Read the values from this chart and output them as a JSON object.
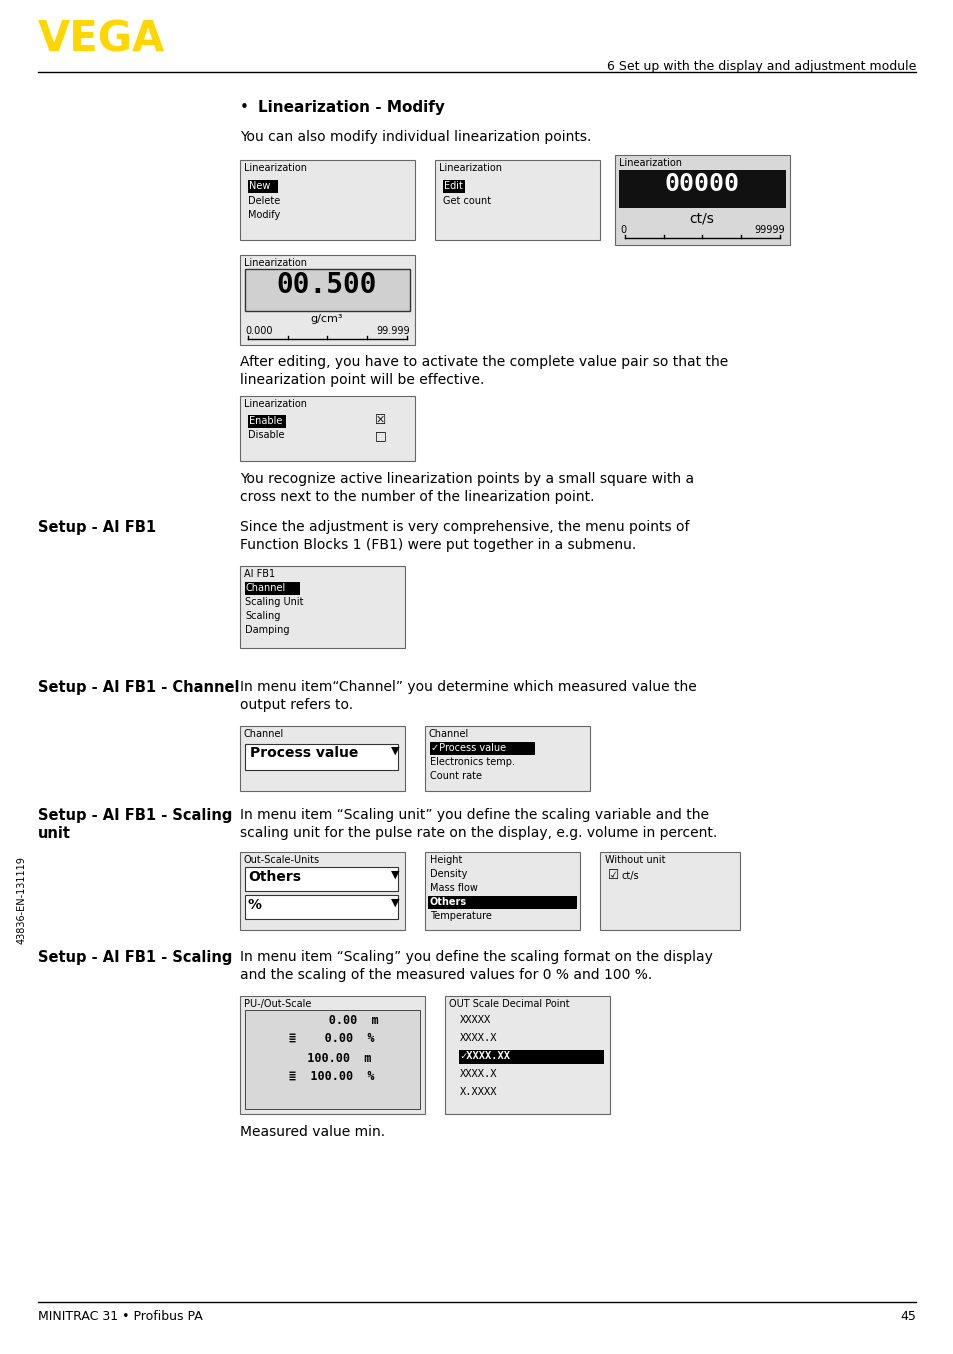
{
  "page_bg": "#ffffff",
  "vega_color": "#FFD700",
  "header_right_text": "6 Set up with the display and adjustment module",
  "footer_left_text": "MINITRAC 31 • Profibus PA",
  "footer_right_text": "45",
  "side_text": "43836-EN-131119",
  "bullet_text": "Linearization - Modify",
  "para1": "You can also modify individual linearization points.",
  "box1_title": "Linearization",
  "box2_title": "Linearization",
  "box3_title": "Linearization",
  "box3_value": "00000",
  "box3_unit": "ct/s",
  "box3_min": "0",
  "box3_max": "99999",
  "box4_title": "Linearization",
  "box4_value": "00.500",
  "box4_unit": "g/cm³",
  "box4_min": "0.000",
  "box4_max": "99.999",
  "para2a": "After editing, you have to activate the complete value pair so that the",
  "para2b": "linearization point will be effective.",
  "box5_title": "Linearization",
  "para3a": "You recognize active linearization points by a small square with a",
  "para3b": "cross next to the number of the linearization point.",
  "section1_label": "Setup - AI FB1",
  "section1_para1": "Since the adjustment is very comprehensive, the menu points of",
  "section1_para2": "Function Blocks 1 (FB1) were put together in a submenu.",
  "box6_title": "AI FB1",
  "section2_label": "Setup - AI FB1 - Channel",
  "section2_para1": "In menu item“Channel” you determine which measured value the",
  "section2_para2": "output refers to.",
  "box7_title": "Channel",
  "box7_value": "Process value",
  "box8_title": "Channel",
  "section3_label1": "Setup - AI FB1 - Scaling",
  "section3_label2": "unit",
  "section3_para1": "In menu item “Scaling unit” you define the scaling variable and the",
  "section3_para2": "scaling unit for the pulse rate on the display, e.g. volume in percent.",
  "box9_title": "Out-Scale-Units",
  "box9_val1": "Others",
  "box9_val2": "%",
  "section4_label": "Setup - AI FB1 - Scaling",
  "section4_para1": "In menu item “Scaling” you define the scaling format on the display",
  "section4_para2": "and the scaling of the measured values for 0 % and 100 %.",
  "box12_title": "PU-/Out-Scale",
  "box13_title": "OUT Scale Decimal Point",
  "para4": "Measured value min."
}
